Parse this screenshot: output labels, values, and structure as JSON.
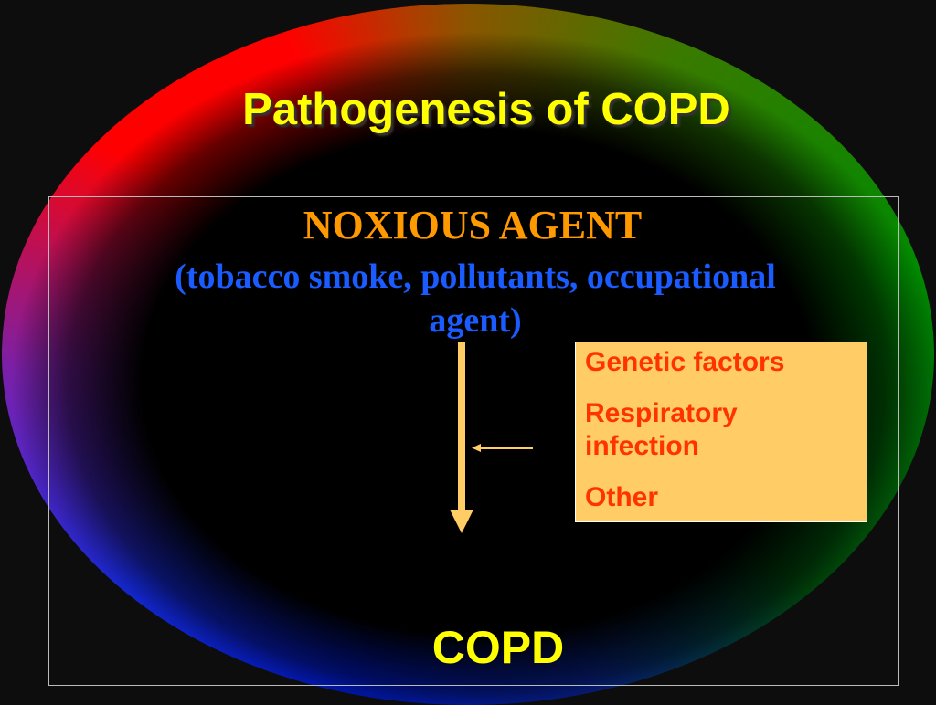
{
  "slide": {
    "title": "Pathogenesis of COPD",
    "agent_heading": "NOXIOUS AGENT",
    "agent_examples_line1": "(tobacco smoke, pollutants, occupational",
    "agent_examples_line2": "agent)",
    "factors": [
      "Genetic factors",
      "Respiratory infection",
      "Other"
    ],
    "outcome": "COPD"
  },
  "colors": {
    "title": "#ffff00",
    "agent_heading": "#ff9900",
    "agent_examples": "#1a5cff",
    "arrow": "#ffcc66",
    "factor_box": "#ffcc66",
    "factor_text": "#ff3300",
    "outcome": "#ffff00"
  }
}
